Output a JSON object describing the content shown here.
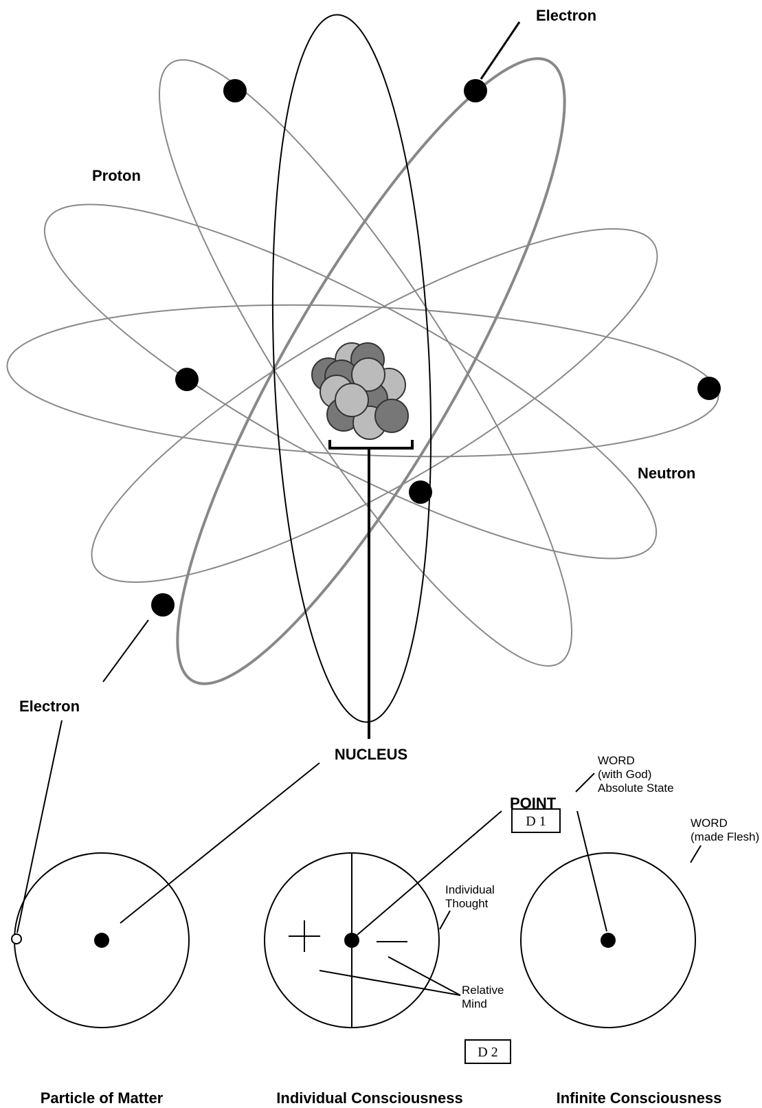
{
  "atom": {
    "electron_top": "Electron",
    "proton": "Proton",
    "neutron": "Neutron",
    "electron_bottom": "Electron",
    "nucleus": "NUCLEUS"
  },
  "point": {
    "label": "POINT",
    "word_with_god": [
      "WORD",
      "(with God)",
      "Absolute State"
    ],
    "d1": "D 1"
  },
  "individual": {
    "thought": [
      "Individual",
      "Thought"
    ],
    "relative_mind": [
      "Relative",
      "Mind"
    ],
    "d2": "D 2"
  },
  "infinite": {
    "word_made_flesh": [
      "WORD",
      "(made Flesh)"
    ]
  },
  "captions": [
    "Particle of Matter",
    "Individual Consciousness",
    "Infinite Consciousness"
  ]
}
